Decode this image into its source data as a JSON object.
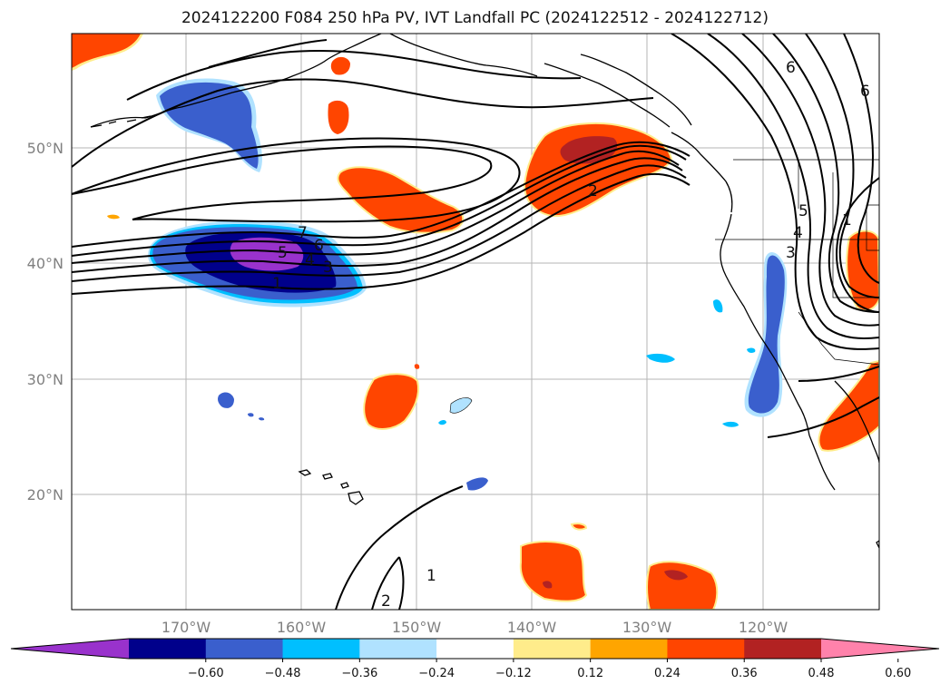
{
  "title": "2024122200 F084 250 hPa PV, IVT Landfall PC (2024122512 - 2024122712)",
  "map": {
    "lon_labels": [
      "170°W",
      "160°W",
      "150°W",
      "140°W",
      "130°W",
      "120°W"
    ],
    "lat_labels": [
      "50°N",
      "40°N",
      "30°N",
      "20°N"
    ],
    "contour_labels": [
      "7",
      "6",
      "5",
      "4",
      "3",
      "1",
      "2",
      "6",
      "6",
      "5",
      "4",
      "3",
      "1",
      "2",
      "1"
    ]
  },
  "colorbar": {
    "ticks": [
      "−0.60",
      "−0.48",
      "−0.36",
      "−0.24",
      "−0.12",
      "0.12",
      "0.24",
      "0.36",
      "0.48",
      "0.60"
    ],
    "colors": [
      "#9932cc",
      "#00008b",
      "#3a5fcd",
      "#00bfff",
      "#b0e2ff",
      "#ffffff",
      "#ffec8b",
      "#ffa500",
      "#ff4500",
      "#b22222",
      "#ff82ab"
    ]
  }
}
